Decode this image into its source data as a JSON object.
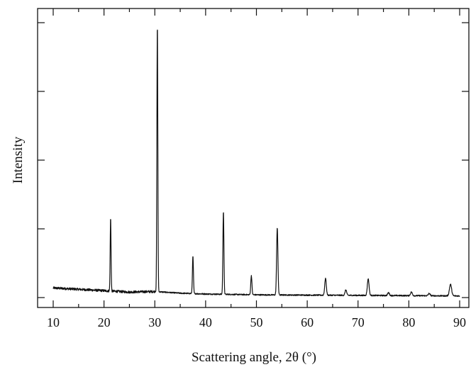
{
  "chart_data": {
    "type": "line",
    "title": "",
    "xlabel": "Scattering angle, 2θ (°)",
    "ylabel": "Intensity",
    "xlim": [
      10,
      90
    ],
    "x_ticks": [
      10,
      20,
      30,
      40,
      50,
      60,
      70,
      80,
      90
    ],
    "y_tick_labels_shown": false,
    "ylim": [
      0,
      100
    ],
    "grid": false,
    "legend": "none",
    "line_color": "#111111",
    "baseline": {
      "x": [
        10,
        15,
        20,
        25,
        30,
        35,
        40,
        50,
        60,
        70,
        80,
        90
      ],
      "y": [
        3.5,
        3.0,
        2.5,
        2.0,
        2.2,
        1.6,
        1.3,
        1.0,
        0.9,
        0.8,
        0.7,
        0.6
      ]
    },
    "peaks": [
      {
        "x": 21.3,
        "y": 29.0
      },
      {
        "x": 30.5,
        "y": 99.5
      },
      {
        "x": 37.5,
        "y": 15.0
      },
      {
        "x": 43.5,
        "y": 31.5
      },
      {
        "x": 49.0,
        "y": 8.0
      },
      {
        "x": 54.1,
        "y": 25.5
      },
      {
        "x": 63.6,
        "y": 7.0
      },
      {
        "x": 67.6,
        "y": 2.8
      },
      {
        "x": 72.0,
        "y": 6.8
      },
      {
        "x": 76.0,
        "y": 1.8
      },
      {
        "x": 80.5,
        "y": 2.0
      },
      {
        "x": 84.0,
        "y": 1.5
      },
      {
        "x": 88.2,
        "y": 4.8
      }
    ]
  }
}
